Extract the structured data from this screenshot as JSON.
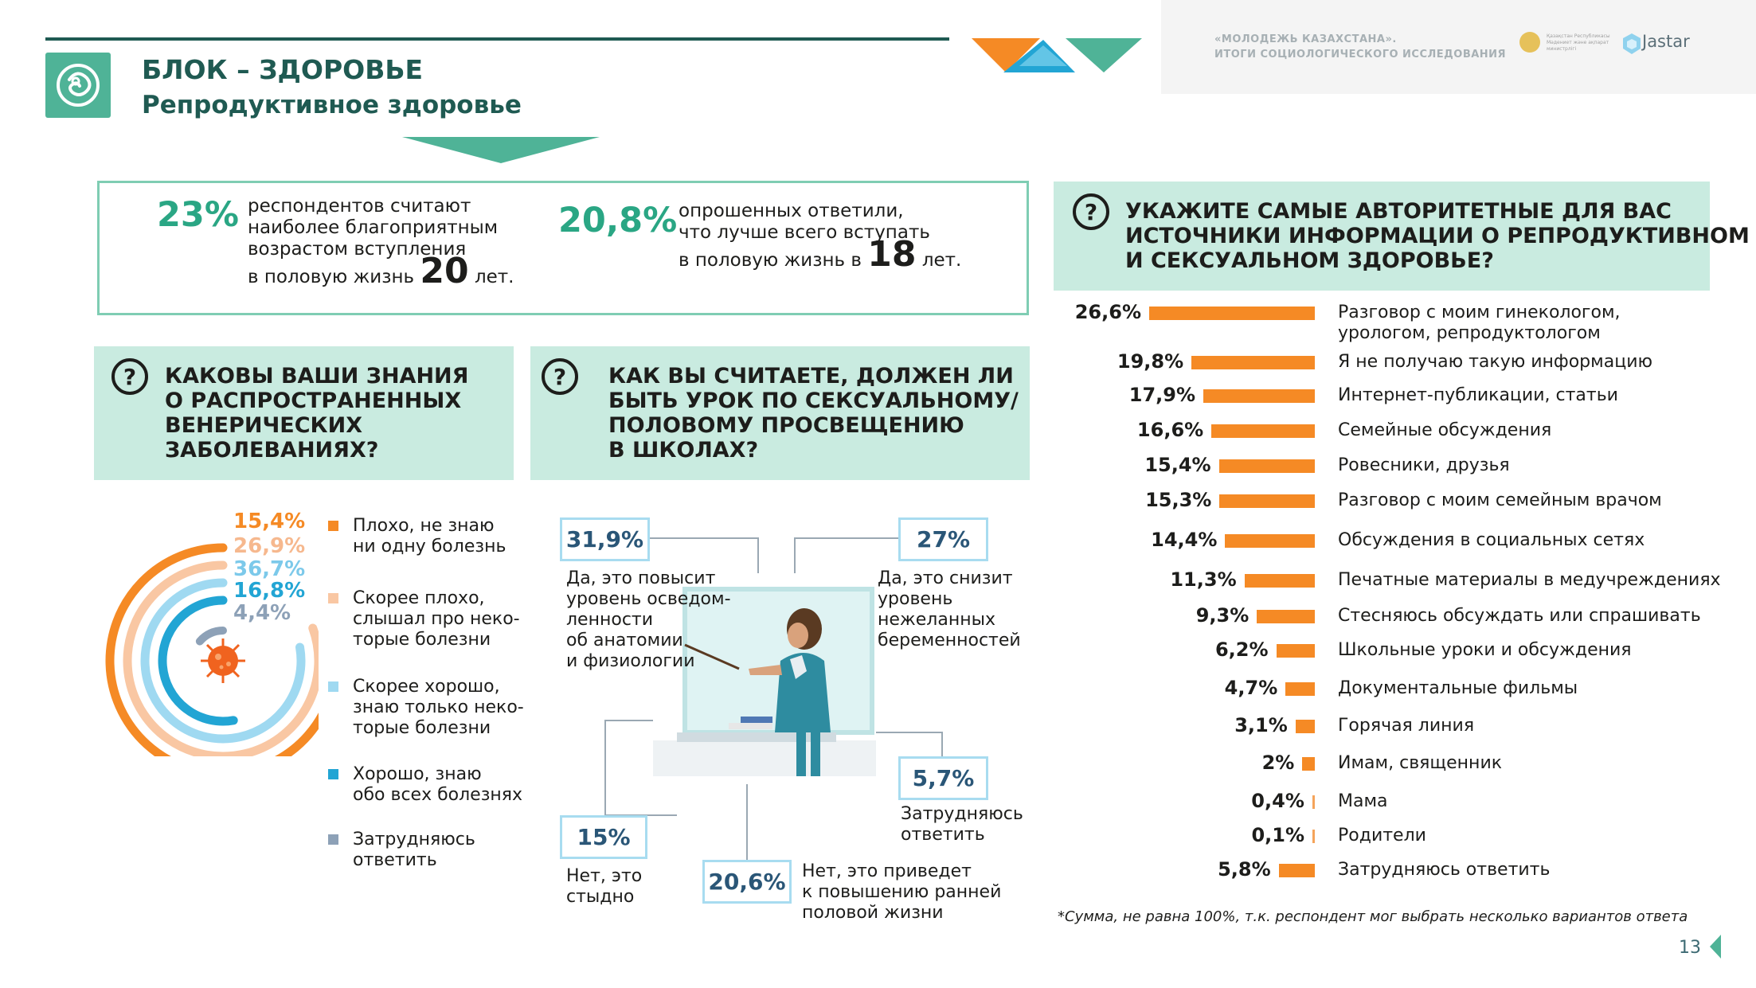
{
  "header": {
    "title": "БЛОК – ЗДОРОВЬЕ",
    "subtitle": "Репродуктивное здоровье",
    "study_line1": "«МОЛОДЕЖЬ КАЗАХСТАНА».",
    "study_line2": "ИТОГИ СОЦИОЛОГИЧЕСКОГО ИССЛЕДОВАНИЯ",
    "brand": "Jastar",
    "emblem_text": "Қазақстан Республикасы Мәдениет және ақпарат министрлігі"
  },
  "stats": {
    "left_pct": "23%",
    "left_l1": "респондентов считают",
    "left_l2": "наиболее благоприятным",
    "left_l3": "возрастом вступления",
    "left_l4": "в половую жизнь",
    "left_age": "20",
    "left_suffix": "лет.",
    "right_pct": "20,8%",
    "right_l1": "опрошенных ответили,",
    "right_l2": "что лучше всего вступать",
    "right_l3": "в половую жизнь в",
    "right_age": "18",
    "right_suffix": "лет."
  },
  "q_std": {
    "icon": "?",
    "line1": "КАКОВЫ ВАШИ ЗНАНИЯ",
    "line2": "О РАСПРОСТРАНЕННЫХ",
    "line3": "ВЕНЕРИЧЕСКИХ",
    "line4": "ЗАБОЛЕВАНИЯХ?",
    "arcs": [
      {
        "pct": "15,4%",
        "color": "#f58a25"
      },
      {
        "pct": "26,9%",
        "color": "#f9c7a3"
      },
      {
        "pct": "36,7%",
        "color": "#9fd9f1"
      },
      {
        "pct": "16,8%",
        "color": "#22a5d4"
      },
      {
        "pct": "4,4%",
        "color": "#8da1b7"
      }
    ],
    "legend": [
      {
        "l1": "Плохо, не знаю",
        "l2": "ни одну болезнь",
        "color": "#f58a25"
      },
      {
        "l1": "Скорее плохо,",
        "l2": "слышал про неко-",
        "l3": "торые болезни",
        "color": "#f9c7a3"
      },
      {
        "l1": "Скорее хорошо,",
        "l2": "знаю только неко-",
        "l3": "торые болезни",
        "color": "#9fd9f1"
      },
      {
        "l1": "Хорошо, знаю",
        "l2": "обо всех болезнях",
        "color": "#22a5d4"
      },
      {
        "l1": "Затрудняюсь",
        "l2": "ответить",
        "color": "#8da1b7"
      }
    ]
  },
  "q_school": {
    "icon": "?",
    "line1": "КАК ВЫ СЧИТАЕТЕ, ДОЛЖЕН ЛИ",
    "line2": "БЫТЬ УРОК ПО СЕКСУАЛЬНОМУ/",
    "line3": "ПОЛОВОМУ ПРОСВЕЩЕНИЮ",
    "line4": "В ШКОЛАХ?",
    "answers": [
      {
        "pct": "31,9%",
        "l1": "Да, это повысит",
        "l2": "уровень осведом-",
        "l3": "ленности",
        "l4": "об анатомии",
        "l5": "и физиологии"
      },
      {
        "pct": "27%",
        "l1": "Да, это снизит",
        "l2": "уровень",
        "l3": "нежеланных",
        "l4": "беременностей"
      },
      {
        "pct": "5,7%",
        "l1": "Затрудняюсь",
        "l2": "ответить"
      },
      {
        "pct": "15%",
        "l1": "Нет, это",
        "l2": "стыдно"
      },
      {
        "pct": "20,6%",
        "l1": "Нет, это приведет",
        "l2": "к повышению ранней",
        "l3": "половой жизни"
      }
    ]
  },
  "q_sources": {
    "icon": "?",
    "line1": "УКАЖИТЕ САМЫЕ АВТОРИТЕТНЫЕ ДЛЯ ВАС",
    "line2": "ИСТОЧНИКИ ИНФОРМАЦИИ О РЕПРОДУКТИВНОМ",
    "line3": "И СЕКСУАЛЬНОМ ЗДОРОВЬЕ?",
    "bar_color": "#f58a25"
  },
  "chart_data": {
    "type": "bar",
    "orientation": "horizontal",
    "categories": [
      "Разговор с моим гинекологом, урологом, репродуктологом",
      "Я не получаю такую информацию",
      "Интернет-публикации, статьи",
      "Семейные обсуждения",
      "Ровесники, друзья",
      "Разговор с моим семейным врачом",
      "Обсуждения в социальных сетях",
      "Печатные материалы в медучреждениях",
      "Стесняюсь обсуждать или спрашивать",
      "Школьные уроки и обсуждения",
      "Документальные фильмы",
      "Горячая линия",
      "Имам, священник",
      "Мама",
      "Родители",
      "Затрудняюсь ответить"
    ],
    "label_lines": [
      [
        "Разговор с моим гинекологом,",
        "урологом, репродуктологом"
      ],
      [
        "Я не получаю такую информацию"
      ],
      [
        "Интернет-публикации, статьи"
      ],
      [
        "Семейные обсуждения"
      ],
      [
        "Ровесники, друзья"
      ],
      [
        "Разговор с моим семейным врачом"
      ],
      [
        "Обсуждения в социальных сетях"
      ],
      [
        "Печатные материалы в медучреждениях"
      ],
      [
        "Стесняюсь обсуждать или спрашивать"
      ],
      [
        "Школьные уроки и обсуждения"
      ],
      [
        "Документальные фильмы"
      ],
      [
        "Горячая линия"
      ],
      [
        "Имам, священник"
      ],
      [
        "Мама"
      ],
      [
        "Родители"
      ],
      [
        "Затрудняюсь ответить"
      ]
    ],
    "values": [
      26.6,
      19.8,
      17.9,
      16.6,
      15.4,
      15.3,
      14.4,
      11.3,
      9.3,
      6.2,
      4.7,
      3.1,
      2.0,
      0.4,
      0.1,
      5.8
    ],
    "value_labels": [
      "26,6%",
      "19,8%",
      "17,9%",
      "16,6%",
      "15,4%",
      "15,3%",
      "14,4%",
      "11,3%",
      "9,3%",
      "6,2%",
      "4,7%",
      "3,1%",
      "2%",
      "0,4%",
      "0,1%",
      "5,8%"
    ]
  },
  "footnote": "*Сумма, не равна 100%, т.к. респондент мог выбрать несколько вариантов ответа",
  "page_number": "13"
}
